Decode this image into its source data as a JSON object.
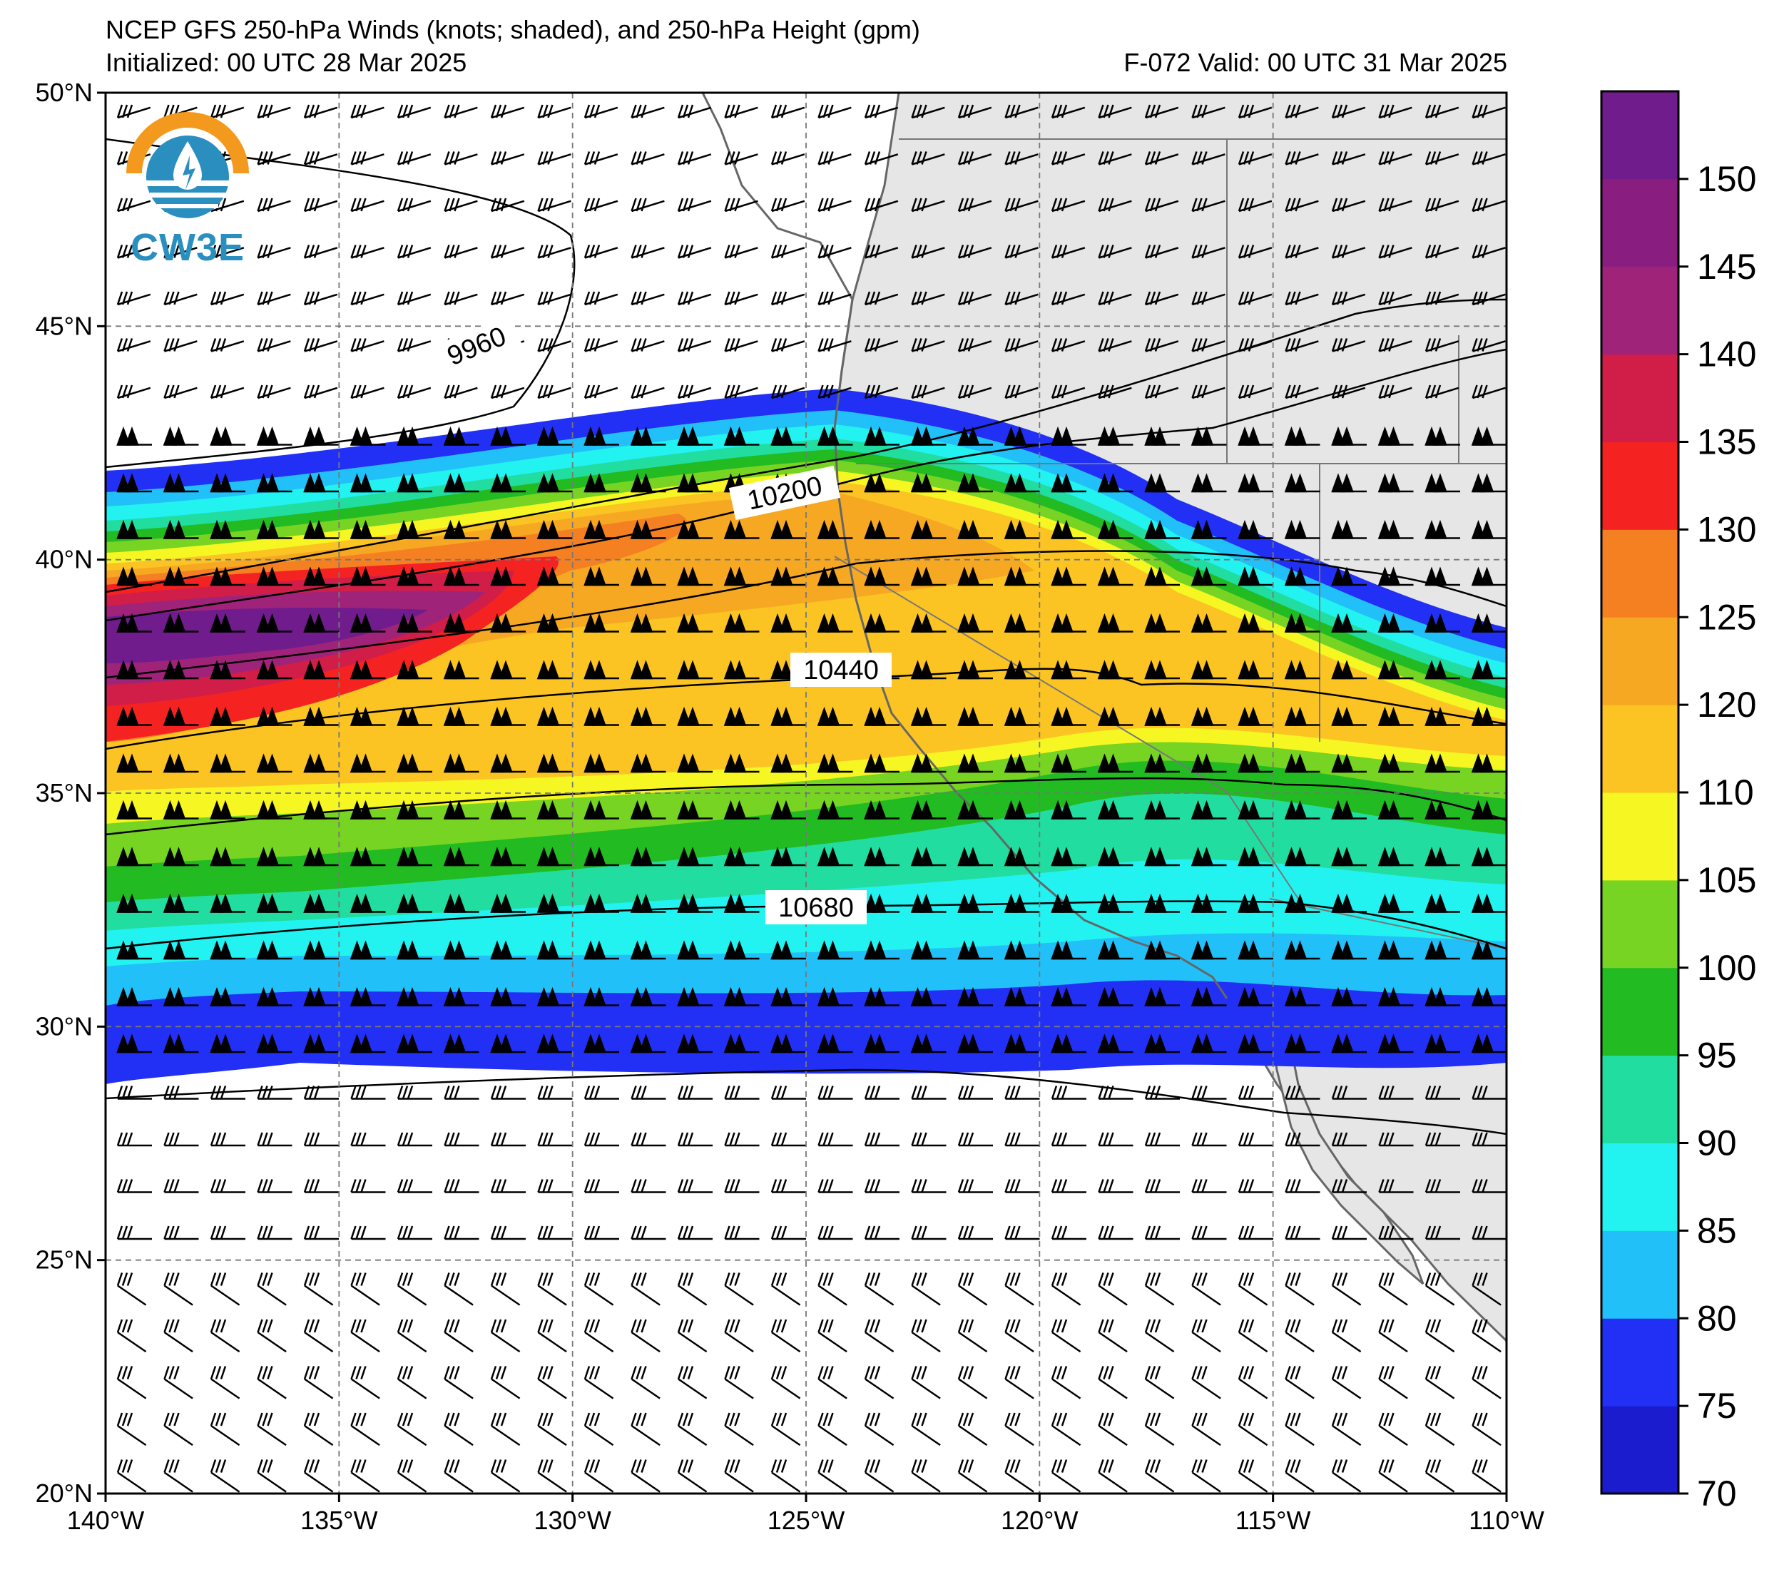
{
  "title": {
    "line1": "NCEP GFS 250-hPa Winds (knots; shaded), and 250-hPa Height (gpm)",
    "line2": "Initialized: 00 UTC 28 Mar 2025",
    "right": "F-072  Valid: 00 UTC 31 Mar 2025"
  },
  "logo": {
    "text": "CW3E",
    "icon": "cw3e-water-drop-logo-icon"
  },
  "map": {
    "lon_range": [
      -140,
      -110
    ],
    "lat_range": [
      20,
      50
    ],
    "grid": true,
    "lon_ticks": [
      {
        "value": -140,
        "label": "140°W"
      },
      {
        "value": -135,
        "label": "135°W"
      },
      {
        "value": -130,
        "label": "130°W"
      },
      {
        "value": -125,
        "label": "125°W"
      },
      {
        "value": -120,
        "label": "120°W"
      },
      {
        "value": -115,
        "label": "115°W"
      },
      {
        "value": -110,
        "label": "110°W"
      }
    ],
    "lat_ticks": [
      {
        "value": 50,
        "label": "50°N"
      },
      {
        "value": 45,
        "label": "45°N"
      },
      {
        "value": 40,
        "label": "40°N"
      },
      {
        "value": 35,
        "label": "35°N"
      },
      {
        "value": 30,
        "label": "30°N"
      },
      {
        "value": 25,
        "label": "25°N"
      },
      {
        "value": 20,
        "label": "20°N"
      }
    ],
    "land_color": "#e6e6e6",
    "coast_color": "#666666",
    "height_contours": [
      {
        "value": 9960,
        "label": "9960"
      },
      {
        "value": 10200,
        "label": "10200"
      },
      {
        "value": 10440,
        "label": "10440"
      },
      {
        "value": 10680,
        "label": "10680"
      }
    ]
  },
  "colorbar": {
    "ticks": [
      "150",
      "145",
      "140",
      "135",
      "130",
      "125",
      "120",
      "110",
      "105",
      "100",
      "95",
      "90",
      "85",
      "80",
      "75",
      "70"
    ],
    "bins": [
      {
        "range": [
          70,
          75
        ],
        "color": "#1c1ccf"
      },
      {
        "range": [
          75,
          80
        ],
        "color": "#2230f5"
      },
      {
        "range": [
          80,
          85
        ],
        "color": "#22c0f8"
      },
      {
        "range": [
          85,
          90
        ],
        "color": "#22f2f0"
      },
      {
        "range": [
          90,
          95
        ],
        "color": "#22dda0"
      },
      {
        "range": [
          95,
          100
        ],
        "color": "#22bb22"
      },
      {
        "range": [
          100,
          105
        ],
        "color": "#77d422"
      },
      {
        "range": [
          105,
          110
        ],
        "color": "#f6f622"
      },
      {
        "range": [
          110,
          120
        ],
        "color": "#fbc422"
      },
      {
        "range": [
          120,
          125
        ],
        "color": "#f6a822"
      },
      {
        "range": [
          125,
          130
        ],
        "color": "#f58022"
      },
      {
        "range": [
          130,
          135
        ],
        "color": "#f52222"
      },
      {
        "range": [
          135,
          140
        ],
        "color": "#d01e48"
      },
      {
        "range": [
          140,
          145
        ],
        "color": "#a0237a"
      },
      {
        "range": [
          145,
          150
        ],
        "color": "#8a1e80"
      },
      {
        "range": [
          150,
          155
        ],
        "color": "#701c8c"
      }
    ]
  }
}
